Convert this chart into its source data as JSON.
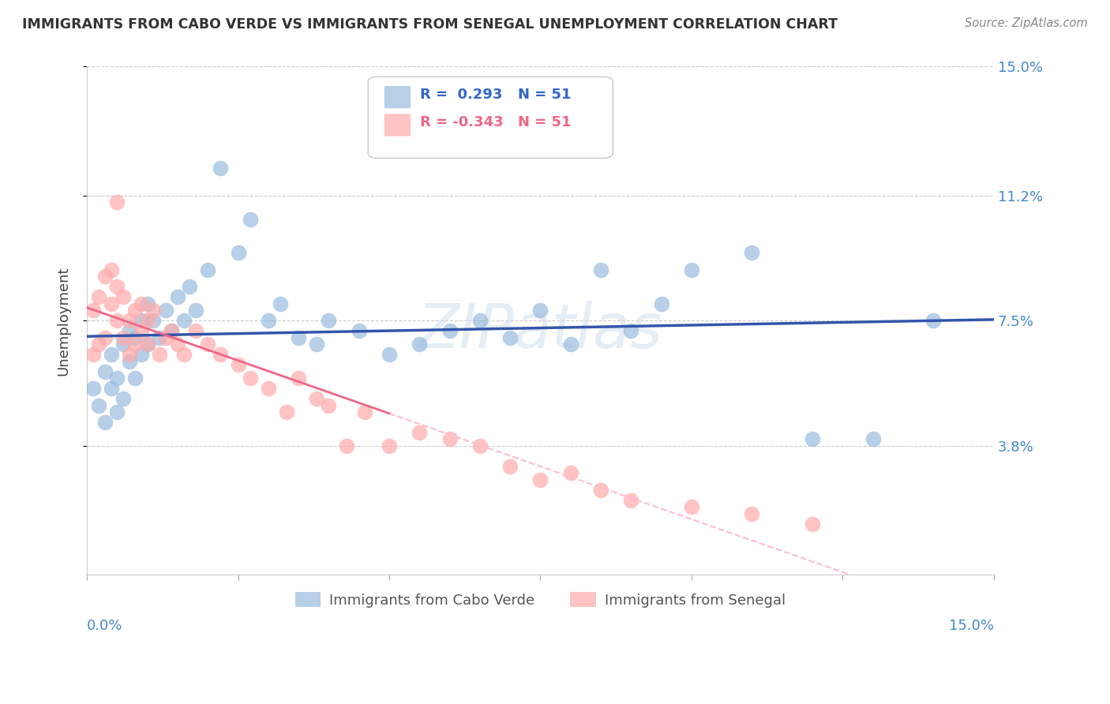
{
  "title": "IMMIGRANTS FROM CABO VERDE VS IMMIGRANTS FROM SENEGAL UNEMPLOYMENT CORRELATION CHART",
  "source": "Source: ZipAtlas.com",
  "ylabel": "Unemployment",
  "xlim": [
    0.0,
    0.15
  ],
  "ylim": [
    0.0,
    0.15
  ],
  "y_ticks": [
    0.038,
    0.075,
    0.112,
    0.15
  ],
  "y_tick_labels": [
    "3.8%",
    "7.5%",
    "11.2%",
    "15.0%"
  ],
  "cabo_verde_color": "#99BBDD",
  "senegal_color": "#FFAAAA",
  "cabo_verde_line_color": "#3355AA",
  "senegal_line_color": "#EE6688",
  "senegal_dashed_color": "#FFBBCC",
  "background_color": "#FFFFFF",
  "watermark": "ZIPatlas",
  "cabo_verde_x": [
    0.001,
    0.002,
    0.003,
    0.003,
    0.004,
    0.004,
    0.005,
    0.005,
    0.006,
    0.006,
    0.007,
    0.007,
    0.008,
    0.008,
    0.009,
    0.009,
    0.01,
    0.01,
    0.011,
    0.012,
    0.013,
    0.014,
    0.015,
    0.016,
    0.017,
    0.018,
    0.02,
    0.022,
    0.025,
    0.027,
    0.03,
    0.032,
    0.035,
    0.038,
    0.04,
    0.045,
    0.05,
    0.055,
    0.06,
    0.065,
    0.07,
    0.075,
    0.08,
    0.085,
    0.09,
    0.095,
    0.1,
    0.11,
    0.12,
    0.13,
    0.14
  ],
  "cabo_verde_y": [
    0.055,
    0.05,
    0.06,
    0.045,
    0.065,
    0.055,
    0.058,
    0.048,
    0.068,
    0.052,
    0.072,
    0.063,
    0.07,
    0.058,
    0.065,
    0.075,
    0.068,
    0.08,
    0.075,
    0.07,
    0.078,
    0.072,
    0.082,
    0.075,
    0.085,
    0.078,
    0.09,
    0.12,
    0.095,
    0.105,
    0.075,
    0.08,
    0.07,
    0.068,
    0.075,
    0.072,
    0.065,
    0.068,
    0.072,
    0.075,
    0.07,
    0.078,
    0.068,
    0.09,
    0.072,
    0.08,
    0.09,
    0.095,
    0.04,
    0.04,
    0.075
  ],
  "senegal_x": [
    0.001,
    0.001,
    0.002,
    0.002,
    0.003,
    0.003,
    0.004,
    0.004,
    0.005,
    0.005,
    0.005,
    0.006,
    0.006,
    0.007,
    0.007,
    0.008,
    0.008,
    0.009,
    0.009,
    0.01,
    0.01,
    0.011,
    0.012,
    0.013,
    0.014,
    0.015,
    0.016,
    0.018,
    0.02,
    0.022,
    0.025,
    0.027,
    0.03,
    0.033,
    0.035,
    0.038,
    0.04,
    0.043,
    0.046,
    0.05,
    0.055,
    0.06,
    0.065,
    0.07,
    0.075,
    0.08,
    0.085,
    0.09,
    0.1,
    0.11,
    0.12
  ],
  "senegal_y": [
    0.078,
    0.065,
    0.082,
    0.068,
    0.088,
    0.07,
    0.08,
    0.09,
    0.075,
    0.085,
    0.11,
    0.07,
    0.082,
    0.075,
    0.065,
    0.078,
    0.068,
    0.08,
    0.072,
    0.075,
    0.068,
    0.078,
    0.065,
    0.07,
    0.072,
    0.068,
    0.065,
    0.072,
    0.068,
    0.065,
    0.062,
    0.058,
    0.055,
    0.048,
    0.058,
    0.052,
    0.05,
    0.038,
    0.048,
    0.038,
    0.042,
    0.04,
    0.038,
    0.032,
    0.028,
    0.03,
    0.025,
    0.022,
    0.02,
    0.018,
    0.015
  ],
  "cabo_verde_R": 0.293,
  "senegal_R": -0.343,
  "N": 51
}
